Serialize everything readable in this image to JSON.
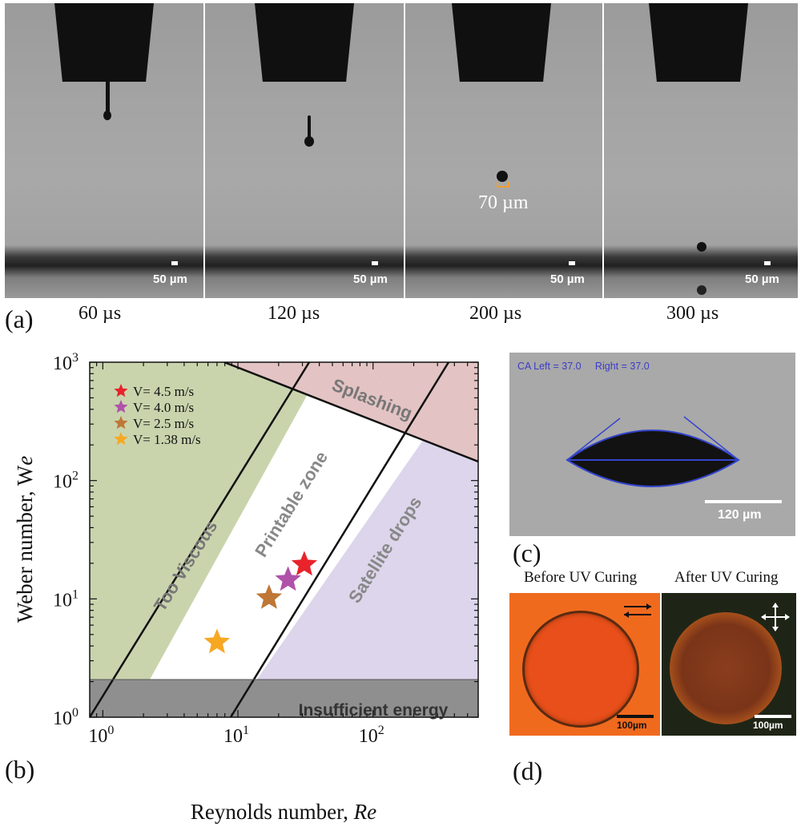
{
  "panel_a": {
    "letter": "(a)",
    "frames": [
      {
        "time": "60 µs",
        "scale": "50 µm"
      },
      {
        "time": "120 µs",
        "scale": "50 µm"
      },
      {
        "time": "200 µs",
        "scale": "50 µm",
        "annotation": "70 µm"
      },
      {
        "time": "300 µs",
        "scale": "50 µm"
      }
    ]
  },
  "panel_b": {
    "letter": "(b)",
    "chart_data": {
      "type": "scatter",
      "xscale": "log",
      "yscale": "log",
      "xlim": [
        0.8,
        600
      ],
      "ylim": [
        1,
        1000
      ],
      "xlabel": "Reynolds number, Re",
      "ylabel": "Weber number, We",
      "xticks": [
        "10^0",
        "10^1",
        "10^2"
      ],
      "yticks": [
        "10^0",
        "10^1",
        "10^2",
        "10^3"
      ],
      "regions": [
        {
          "name": "Too Viscous",
          "color": "#c9d4ad"
        },
        {
          "name": "Printable zone",
          "color": "#ffffff"
        },
        {
          "name": "Splashing",
          "color": "#e3c3c3"
        },
        {
          "name": "Satellite drops",
          "color": "#dcd5eb"
        },
        {
          "name": "Insufficient energy",
          "color": "#8f8f8f"
        }
      ],
      "series": [
        {
          "name": "V= 4.5 m/s",
          "color": "#e8232b",
          "x": 31,
          "y": 19.5
        },
        {
          "name": "V= 4.0 m/s",
          "color": "#b052a9",
          "x": 23.5,
          "y": 14.5
        },
        {
          "name": "V= 2.5 m/s",
          "color": "#bf7737",
          "x": 17,
          "y": 10.2
        },
        {
          "name": "V= 1.38 m/s",
          "color": "#f7a823",
          "x": 7,
          "y": 4.3
        }
      ],
      "legend": "top-left"
    }
  },
  "panel_c": {
    "letter": "(c)",
    "ca_text": "CA Left = 37.0     Right = 37.0",
    "scale": "120 µm"
  },
  "panel_d": {
    "letter": "(d)",
    "before_label": "Before UV Curing",
    "after_label": "After UV Curing",
    "scale_before": "100µm",
    "scale_after": "100µm"
  }
}
